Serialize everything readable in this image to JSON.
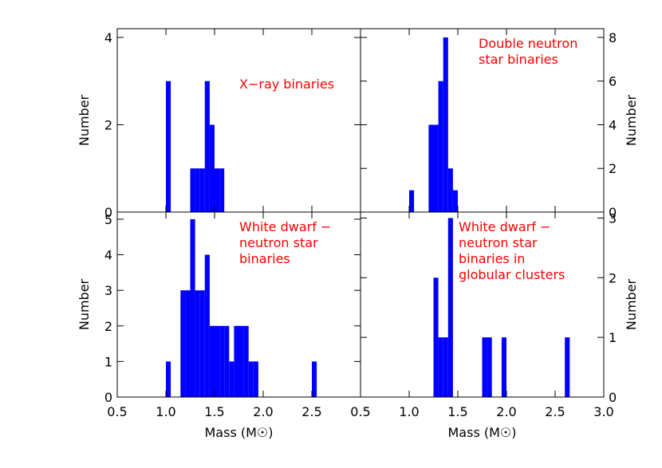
{
  "colors": {
    "bars": "#0000ff",
    "annotation": "#ff0000",
    "axes": "#000000"
  },
  "chart_data": [
    {
      "type": "bar",
      "panel": "top-left",
      "annotation": [
        "X−ray binaries"
      ],
      "ylabel": "Number",
      "ylabel_side": "left",
      "xlim": [
        0.5,
        1.55
      ],
      "ylim": [
        0,
        4.2
      ],
      "yticks": [
        0,
        2,
        4
      ],
      "ytick_labels": [
        "0",
        "2",
        "4"
      ],
      "bin_width": 0.05,
      "bins": [
        {
          "x": 1.0,
          "y": 3
        },
        {
          "x": 1.25,
          "y": 1
        },
        {
          "x": 1.3,
          "y": 1
        },
        {
          "x": 1.35,
          "y": 1
        },
        {
          "x": 1.4,
          "y": 3
        },
        {
          "x": 1.45,
          "y": 2
        },
        {
          "x": 1.5,
          "y": 1
        },
        {
          "x": 1.55,
          "y": 1
        }
      ]
    },
    {
      "type": "bar",
      "panel": "top-right",
      "annotation": [
        "Double neutron",
        "star binaries"
      ],
      "ylabel": "Number",
      "ylabel_side": "right",
      "xlim": [
        0.5,
        3.0
      ],
      "ylim": [
        0,
        8.4
      ],
      "yticks": [
        0,
        2,
        4,
        6,
        8
      ],
      "ytick_labels": [
        "0",
        "2",
        "4",
        "6",
        "8"
      ],
      "bin_width": 0.05,
      "bins": [
        {
          "x": 1.0,
          "y": 1
        },
        {
          "x": 1.2,
          "y": 4
        },
        {
          "x": 1.25,
          "y": 4
        },
        {
          "x": 1.3,
          "y": 6
        },
        {
          "x": 1.35,
          "y": 8
        },
        {
          "x": 1.4,
          "y": 2
        },
        {
          "x": 1.45,
          "y": 1
        }
      ]
    },
    {
      "type": "bar",
      "panel": "bottom-left",
      "annotation": [
        "White dwarf −",
        "neutron star",
        "binaries"
      ],
      "ylabel": "Number",
      "ylabel_side": "left",
      "xlabel": "Mass (M☉)",
      "xlim": [
        0.5,
        3.0
      ],
      "ylim": [
        0,
        5.2
      ],
      "yticks": [
        0,
        1,
        2,
        3,
        4,
        5
      ],
      "ytick_labels": [
        "0",
        "1",
        "2",
        "3",
        "4",
        "5"
      ],
      "xticks": [
        0.5,
        1.0,
        1.5,
        2.0,
        2.5
      ],
      "xtick_labels": [
        "0.5",
        "1.0",
        "1.5",
        "2.0",
        "2.5"
      ],
      "bin_width": 0.05,
      "bins": [
        {
          "x": 1.0,
          "y": 1
        },
        {
          "x": 1.15,
          "y": 3
        },
        {
          "x": 1.2,
          "y": 3
        },
        {
          "x": 1.25,
          "y": 5
        },
        {
          "x": 1.3,
          "y": 3
        },
        {
          "x": 1.35,
          "y": 3
        },
        {
          "x": 1.4,
          "y": 4
        },
        {
          "x": 1.45,
          "y": 2
        },
        {
          "x": 1.5,
          "y": 2
        },
        {
          "x": 1.55,
          "y": 2
        },
        {
          "x": 1.6,
          "y": 2
        },
        {
          "x": 1.65,
          "y": 1
        },
        {
          "x": 1.7,
          "y": 2
        },
        {
          "x": 1.75,
          "y": 2
        },
        {
          "x": 1.8,
          "y": 2
        },
        {
          "x": 1.85,
          "y": 1
        },
        {
          "x": 1.9,
          "y": 1
        },
        {
          "x": 2.5,
          "y": 1
        }
      ]
    },
    {
      "type": "bar",
      "panel": "bottom-right",
      "annotation": [
        "White dwarf −",
        "neutron star",
        "binaries in",
        "globular clusters"
      ],
      "ylabel": "Number",
      "ylabel_side": "right",
      "xlabel": "Mass (M☉)",
      "xlim": [
        0.5,
        3.0
      ],
      "ylim": [
        0,
        3.1
      ],
      "yticks": [
        0,
        1,
        2,
        3
      ],
      "ytick_labels": [
        "0",
        "1",
        "2",
        "3"
      ],
      "xticks": [
        0.5,
        1.0,
        1.5,
        2.0,
        2.5,
        3.0
      ],
      "xtick_labels": [
        "0.5",
        "1.0",
        "1.5",
        "2.0",
        "2.5",
        "3.0"
      ],
      "bin_width": 0.05,
      "bins": [
        {
          "x": 1.25,
          "y": 2
        },
        {
          "x": 1.3,
          "y": 1
        },
        {
          "x": 1.35,
          "y": 1
        },
        {
          "x": 1.4,
          "y": 3
        },
        {
          "x": 1.75,
          "y": 1
        },
        {
          "x": 1.8,
          "y": 1
        },
        {
          "x": 1.95,
          "y": 1
        },
        {
          "x": 2.6,
          "y": 1
        }
      ]
    }
  ]
}
